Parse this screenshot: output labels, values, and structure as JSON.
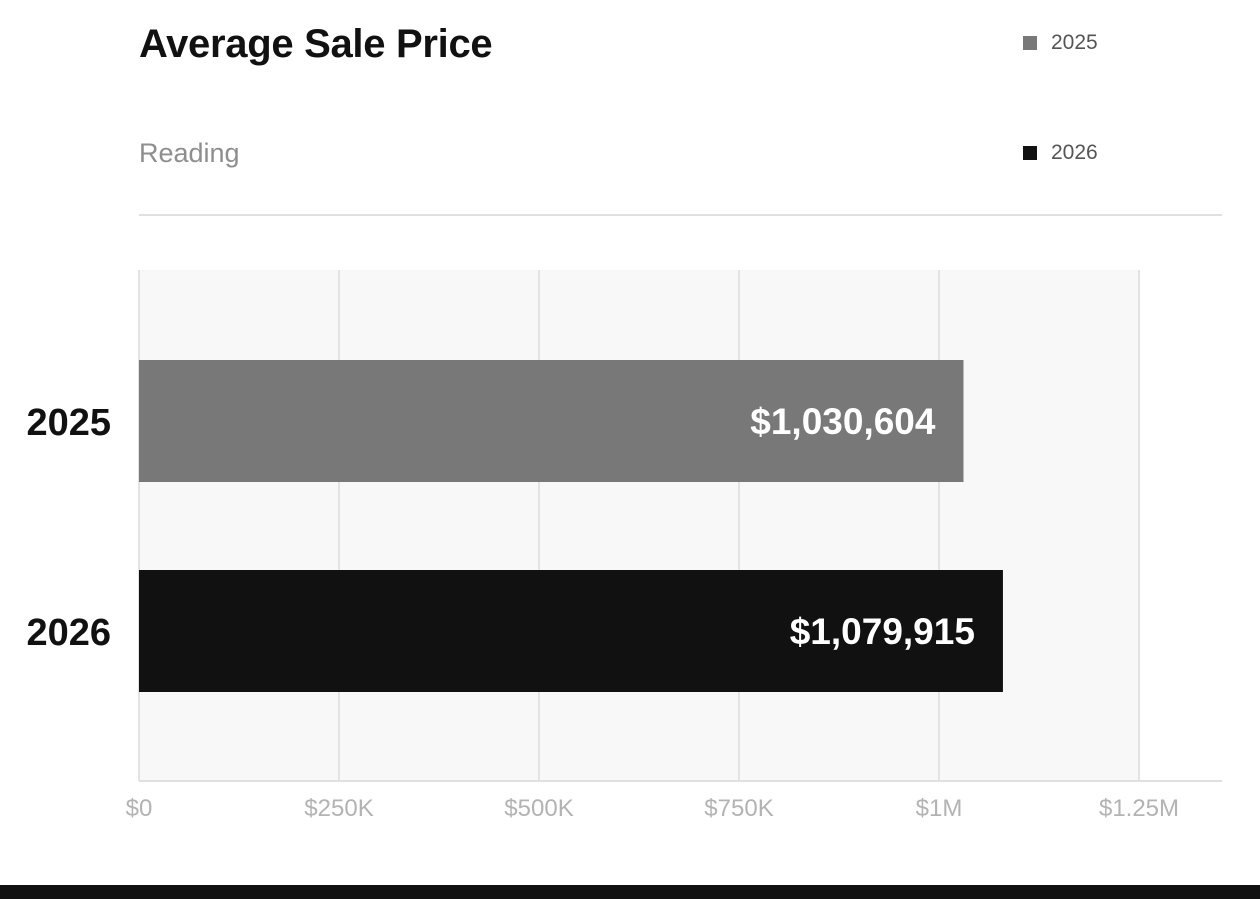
{
  "title": "Average Sale Price",
  "subtitle": "Reading",
  "legend": [
    {
      "label": "2025",
      "color": "#787878"
    },
    {
      "label": "2026",
      "color": "#111111"
    }
  ],
  "chart_data": {
    "type": "bar",
    "orientation": "horizontal",
    "categories": [
      "2025",
      "2026"
    ],
    "values": [
      1030604,
      1079915
    ],
    "value_labels": [
      "$1,030,604",
      "$1,079,915"
    ],
    "colors": [
      "#787878",
      "#111111"
    ],
    "title": "Average Sale Price",
    "subtitle": "Reading",
    "xlim": [
      0,
      1250000
    ],
    "xticks": [
      0,
      250000,
      500000,
      750000,
      1000000,
      1250000
    ],
    "xtick_labels": [
      "$0",
      "$250K",
      "$500K",
      "$750K",
      "$1M",
      "$1.25M"
    ],
    "grid": true,
    "legend_position": "top-right"
  }
}
